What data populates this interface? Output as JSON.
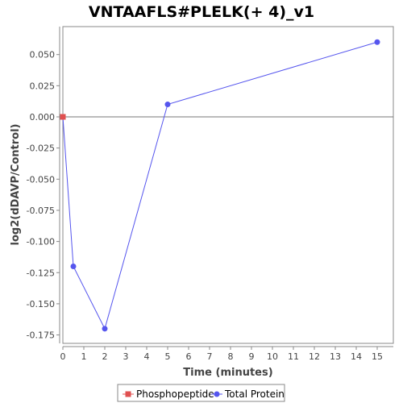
{
  "chart_data": {
    "type": "line",
    "title": "VNTAAFLS#PLELK(+ 4)_v1",
    "xlabel": "Time (minutes)",
    "ylabel": "log2(dDAVP/Control)",
    "xlim": [
      0,
      15.7
    ],
    "ylim": [
      -0.18,
      0.07
    ],
    "x_ticks": [
      0,
      1,
      2,
      3,
      4,
      5,
      6,
      7,
      8,
      9,
      10,
      11,
      12,
      13,
      14,
      15
    ],
    "y_ticks": [
      0.05,
      0.025,
      0.0,
      -0.025,
      -0.05,
      -0.075,
      -0.1,
      -0.125,
      -0.15,
      -0.175
    ],
    "y_tick_labels": [
      "0.050",
      "0.025",
      "0.000",
      "-0.025",
      "-0.050",
      "-0.075",
      "-0.100",
      "-0.125",
      "-0.150",
      "-0.175"
    ],
    "reference_line_y": 0,
    "series": [
      {
        "name": "Phosphopeptide",
        "color": "#e05050",
        "marker": "square",
        "x": [
          0
        ],
        "y": [
          0.0
        ]
      },
      {
        "name": "Total Protein",
        "color": "#5555ee",
        "marker": "circle",
        "x": [
          0,
          0.5,
          2,
          5,
          15
        ],
        "y": [
          0.0,
          -0.12,
          -0.17,
          0.01,
          0.06
        ]
      }
    ],
    "legend_position": "bottom-center",
    "grid": false
  }
}
